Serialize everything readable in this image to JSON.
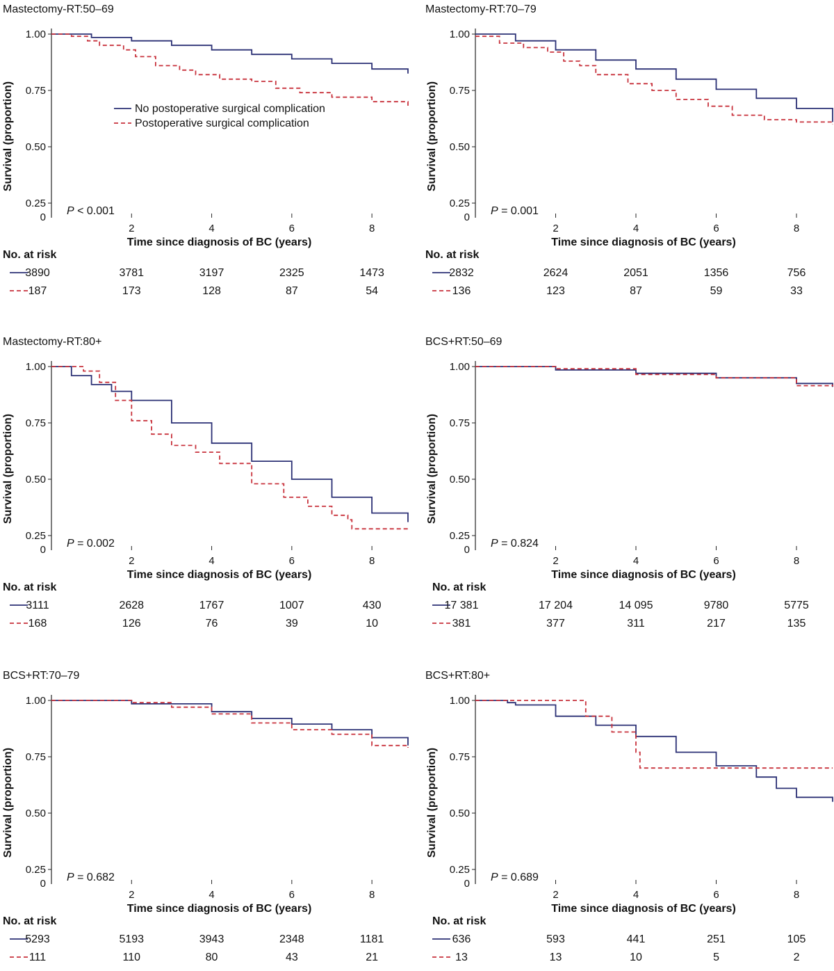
{
  "legend": {
    "no_complication": "No postoperative surgical complication",
    "complication": "Postoperative surgical complication"
  },
  "colors": {
    "no_complication": "#2b3075",
    "complication": "#c8323c"
  },
  "chart_data": [
    {
      "type": "line",
      "title": "Mastectomy-RT:50–69",
      "xlabel": "Time since diagnosis of BC (years)",
      "ylabel": "Survival (proportion)",
      "xlim": [
        0,
        8.9
      ],
      "ylim": [
        0,
        1.0
      ],
      "xticks": [
        "0",
        "2",
        "4",
        "6",
        "8"
      ],
      "yticks": [
        "1.00",
        "0.75",
        "0.50",
        "0.25"
      ],
      "pvalue": {
        "p": "P",
        "text": " < 0.001"
      },
      "legend_shown": true,
      "series": [
        {
          "name": "No postoperative surgical complication",
          "style": "solid",
          "x": [
            0,
            1,
            2,
            3,
            4,
            5,
            6,
            7,
            8,
            8.9
          ],
          "y": [
            1.0,
            0.985,
            0.97,
            0.95,
            0.93,
            0.91,
            0.89,
            0.87,
            0.845,
            0.825
          ]
        },
        {
          "name": "Postoperative surgical complication",
          "style": "dashed",
          "x": [
            0,
            0.5,
            0.9,
            1.2,
            1.8,
            2.1,
            2.6,
            3.2,
            3.6,
            4.2,
            5.0,
            5.6,
            6.2,
            7.0,
            8.0,
            8.9
          ],
          "y": [
            1.0,
            0.99,
            0.97,
            0.95,
            0.93,
            0.9,
            0.86,
            0.84,
            0.82,
            0.8,
            0.79,
            0.76,
            0.74,
            0.72,
            0.7,
            0.67
          ]
        }
      ],
      "risk": {
        "title": "No. at risk",
        "rows": [
          {
            "style": "solid",
            "values": [
              "3890",
              "3781",
              "3197",
              "2325",
              "1473"
            ]
          },
          {
            "style": "dashed",
            "values": [
              "187",
              "173",
              "128",
              "87",
              "54"
            ]
          }
        ]
      }
    },
    {
      "type": "line",
      "title": "Mastectomy-RT:70–79",
      "xlabel": "Time since diagnosis of BC (years)",
      "ylabel": "Survival (proportion)",
      "xlim": [
        0,
        8.9
      ],
      "ylim": [
        0,
        1.0
      ],
      "xticks": [
        "0",
        "2",
        "4",
        "6",
        "8"
      ],
      "yticks": [
        "1.00",
        "0.75",
        "0.50",
        "0.25"
      ],
      "pvalue": {
        "p": "P",
        "text": " = 0.001"
      },
      "legend_shown": false,
      "series": [
        {
          "name": "No postoperative surgical complication",
          "style": "solid",
          "x": [
            0,
            1,
            2,
            3,
            4,
            5,
            6,
            7,
            8,
            8.9
          ],
          "y": [
            1.0,
            0.97,
            0.93,
            0.885,
            0.845,
            0.8,
            0.755,
            0.715,
            0.67,
            0.61
          ]
        },
        {
          "name": "Postoperative surgical complication",
          "style": "dashed",
          "x": [
            0,
            0.6,
            1.2,
            1.8,
            2.2,
            2.6,
            3.0,
            3.8,
            4.4,
            5.0,
            5.8,
            6.4,
            7.2,
            8.0,
            8.9
          ],
          "y": [
            0.99,
            0.96,
            0.94,
            0.92,
            0.88,
            0.86,
            0.82,
            0.78,
            0.75,
            0.71,
            0.68,
            0.64,
            0.62,
            0.61,
            0.6
          ]
        }
      ],
      "risk": {
        "title": "No. at risk",
        "rows": [
          {
            "style": "solid",
            "values": [
              "2832",
              "2624",
              "2051",
              "1356",
              "756"
            ]
          },
          {
            "style": "dashed",
            "values": [
              "136",
              "123",
              "87",
              "59",
              "33"
            ]
          }
        ]
      }
    },
    {
      "type": "line",
      "title": "Mastectomy-RT:80+",
      "xlabel": "Time since diagnosis of BC (years)",
      "ylabel": "Survival (proportion)",
      "xlim": [
        0,
        8.9
      ],
      "ylim": [
        0,
        1.0
      ],
      "xticks": [
        "0",
        "2",
        "4",
        "6",
        "8"
      ],
      "yticks": [
        "1.00",
        "0.75",
        "0.50",
        "0.25"
      ],
      "pvalue": {
        "p": "P",
        "text": " = 0.002"
      },
      "legend_shown": false,
      "series": [
        {
          "name": "No postoperative surgical complication",
          "style": "solid",
          "x": [
            0,
            0.5,
            1,
            1.5,
            2,
            3,
            4,
            5,
            6,
            7,
            8,
            8.9
          ],
          "y": [
            1.0,
            0.96,
            0.92,
            0.89,
            0.85,
            0.75,
            0.66,
            0.58,
            0.5,
            0.42,
            0.35,
            0.31
          ]
        },
        {
          "name": "Postoperative surgical complication",
          "style": "dashed",
          "x": [
            0,
            0.5,
            0.8,
            1.2,
            1.6,
            2.0,
            2.5,
            3.0,
            3.6,
            4.2,
            5.0,
            5.8,
            6.4,
            7.0,
            7.4,
            7.5,
            8.9
          ],
          "y": [
            1.0,
            1.0,
            0.98,
            0.93,
            0.85,
            0.76,
            0.7,
            0.65,
            0.62,
            0.57,
            0.48,
            0.42,
            0.38,
            0.34,
            0.32,
            0.28,
            0.28
          ]
        }
      ],
      "risk": {
        "title": "No. at risk",
        "rows": [
          {
            "style": "solid",
            "values": [
              "3111",
              "2628",
              "1767",
              "1007",
              "430"
            ]
          },
          {
            "style": "dashed",
            "values": [
              "168",
              "126",
              "76",
              "39",
              "10"
            ]
          }
        ]
      }
    },
    {
      "type": "line",
      "title": "BCS+RT:50–69",
      "xlabel": "Time since diagnosis of BC (years)",
      "ylabel": "Survival (proportion)",
      "xlim": [
        0,
        8.9
      ],
      "ylim": [
        0,
        1.0
      ],
      "xticks": [
        "2",
        "4",
        "6",
        "8"
      ],
      "yticks": [
        "1.00",
        "0.75",
        "0.50",
        "0.25"
      ],
      "pvalue": {
        "p": "P",
        "text": " = 0.824"
      },
      "legend_shown": false,
      "series": [
        {
          "name": "No postoperative surgical complication",
          "style": "solid",
          "x": [
            0,
            2,
            4,
            6,
            8,
            8.9
          ],
          "y": [
            1.0,
            0.985,
            0.97,
            0.95,
            0.925,
            0.91
          ]
        },
        {
          "name": "Postoperative surgical complication",
          "style": "dashed",
          "x": [
            0,
            2,
            4,
            6,
            8,
            8.9
          ],
          "y": [
            1.0,
            0.99,
            0.965,
            0.95,
            0.915,
            0.92
          ]
        }
      ],
      "risk": {
        "title": "No. at risk",
        "rows": [
          {
            "style": "solid",
            "values": [
              "17 381",
              "17 204",
              "14 095",
              "9780",
              "5775"
            ]
          },
          {
            "style": "dashed",
            "values": [
              "381",
              "377",
              "311",
              "217",
              "135"
            ]
          }
        ]
      }
    },
    {
      "type": "line",
      "title": "BCS+RT:70–79",
      "xlabel": "Time since diagnosis of BC (years)",
      "ylabel": "Survival (proportion)",
      "xlim": [
        0,
        8.9
      ],
      "ylim": [
        0,
        1.0
      ],
      "xticks": [
        "2",
        "4",
        "6",
        "8"
      ],
      "yticks": [
        "1.00",
        "0.75",
        "0.50",
        "0.25"
      ],
      "pvalue": {
        "p": "P",
        "text": " = 0.682"
      },
      "legend_shown": false,
      "series": [
        {
          "name": "No postoperative surgical complication",
          "style": "solid",
          "x": [
            0,
            2,
            4,
            5,
            6,
            7,
            8,
            8.9
          ],
          "y": [
            1.0,
            0.985,
            0.95,
            0.92,
            0.895,
            0.87,
            0.835,
            0.8
          ]
        },
        {
          "name": "Postoperative surgical complication",
          "style": "dashed",
          "x": [
            0,
            2,
            3,
            4,
            5,
            6,
            7,
            8,
            8.9
          ],
          "y": [
            1.0,
            0.99,
            0.97,
            0.94,
            0.9,
            0.87,
            0.85,
            0.8,
            0.79
          ]
        }
      ],
      "risk": {
        "title": "No. at risk",
        "rows": [
          {
            "style": "solid",
            "values": [
              "5293",
              "5193",
              "3943",
              "2348",
              "1181"
            ]
          },
          {
            "style": "dashed",
            "values": [
              "111",
              "110",
              "80",
              "43",
              "21"
            ]
          }
        ]
      }
    },
    {
      "type": "line",
      "title": "BCS+RT:80+",
      "xlabel": "Time since diagnosis of BC (years)",
      "ylabel": "Survival (proportion)",
      "xlim": [
        0,
        8.9
      ],
      "ylim": [
        0,
        1.0
      ],
      "xticks": [
        "2",
        "4",
        "6",
        "8"
      ],
      "yticks": [
        "1.00",
        "0.75",
        "0.50",
        "0.25"
      ],
      "pvalue": {
        "p": "P",
        "text": " = 0.689"
      },
      "legend_shown": false,
      "series": [
        {
          "name": "No postoperative surgical complication",
          "style": "solid",
          "x": [
            0,
            0.8,
            1,
            2,
            3,
            4,
            5,
            6,
            7,
            7.5,
            8,
            8.9
          ],
          "y": [
            1.0,
            0.99,
            0.98,
            0.93,
            0.89,
            0.84,
            0.77,
            0.71,
            0.66,
            0.61,
            0.57,
            0.55
          ]
        },
        {
          "name": "Postoperative surgical complication",
          "style": "dashed",
          "x": [
            0,
            2.75,
            2.75,
            3.4,
            3.4,
            4.0,
            4.0,
            4.1,
            4.1,
            8.9
          ],
          "y": [
            1.0,
            1.0,
            0.93,
            0.93,
            0.86,
            0.86,
            0.77,
            0.77,
            0.7,
            0.7
          ]
        }
      ],
      "risk": {
        "title": "No. at risk",
        "rows": [
          {
            "style": "solid",
            "values": [
              "636",
              "593",
              "441",
              "251",
              "105"
            ]
          },
          {
            "style": "dashed",
            "values": [
              "13",
              "13",
              "10",
              "5",
              "2"
            ]
          }
        ]
      }
    }
  ]
}
